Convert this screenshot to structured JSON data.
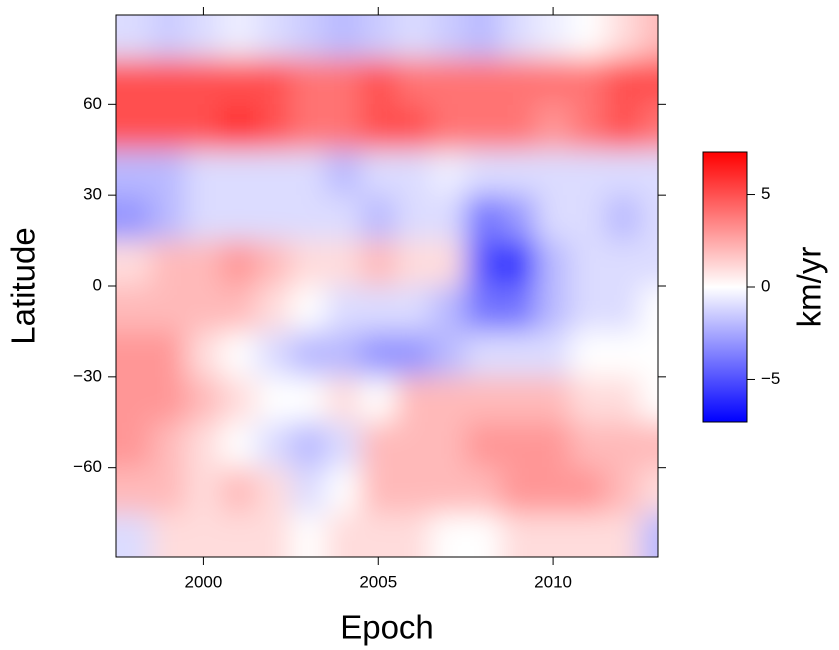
{
  "chart_data": {
    "type": "heatmap",
    "x_label": "Epoch",
    "y_label": "Latitude",
    "colorbar_label": "km/yr",
    "x": [
      1998,
      1999,
      2000,
      2001,
      2002,
      2003,
      2004,
      2005,
      2006,
      2007,
      2008,
      2009,
      2010,
      2011,
      2012,
      2013
    ],
    "y": [
      82.5,
      67.5,
      52.5,
      37.5,
      22.5,
      7.5,
      -7.5,
      -22.5,
      -37.5,
      -52.5,
      -67.5,
      -82.5
    ],
    "values": [
      [
        -1,
        -1.5,
        -1,
        -0.5,
        -1,
        -1.5,
        -2,
        -1.5,
        -1,
        -1.5,
        -2,
        -1,
        -0.5,
        0,
        1,
        2
      ],
      [
        5,
        5,
        5,
        5,
        5,
        4,
        4,
        5,
        4,
        4,
        4,
        4,
        4,
        4,
        5,
        5
      ],
      [
        5,
        5,
        5,
        6,
        5,
        4,
        4,
        5,
        5,
        4,
        4,
        4,
        3,
        4,
        5,
        4
      ],
      [
        -2,
        -2,
        -1,
        -1,
        -1,
        -1,
        -2,
        -1,
        -1,
        -0.5,
        -1,
        -1,
        -1,
        -1,
        -1,
        -1
      ],
      [
        -3,
        -2,
        -1,
        -1,
        -1,
        -1,
        -1,
        -2,
        -1,
        -1,
        -4,
        -3,
        -1,
        -1,
        -2,
        -1
      ],
      [
        1,
        2,
        2,
        3,
        2,
        1,
        1,
        2,
        1,
        1,
        -5,
        -6,
        -2,
        -1,
        -1,
        -1
      ],
      [
        2,
        2,
        2,
        2,
        1,
        0,
        -1,
        -1,
        -1,
        -2,
        -4,
        -4,
        -2,
        -1,
        -1,
        0
      ],
      [
        3,
        3,
        1,
        0,
        -1,
        -2,
        -2,
        -3,
        -3,
        -2,
        -1,
        -1,
        -1,
        0,
        0,
        0
      ],
      [
        3,
        3,
        2,
        1,
        0,
        0,
        1,
        0,
        2,
        2,
        2,
        2,
        2,
        1,
        1,
        0
      ],
      [
        3,
        2,
        1,
        0,
        -1,
        -2,
        -1,
        2,
        2,
        2,
        3,
        3,
        3,
        2,
        2,
        2
      ],
      [
        2,
        2,
        1,
        2,
        1,
        -1,
        0,
        2,
        2,
        2,
        2,
        3,
        3,
        3,
        2,
        1
      ],
      [
        -1,
        1,
        1,
        1,
        1,
        0,
        1,
        1,
        1,
        0,
        0,
        1,
        1,
        1,
        1,
        -2
      ]
    ],
    "xlim": [
      1997.5,
      2013
    ],
    "ylim": [
      -89.5,
      89.5
    ],
    "zlim": [
      -7.3,
      7.3
    ],
    "xticks": [
      2000,
      2005,
      2010
    ],
    "yticks": [
      {
        "value": -60,
        "label": "−60"
      },
      {
        "value": -30,
        "label": "−30"
      },
      0,
      30,
      60
    ],
    "colorbar_ticks": [
      {
        "value": -5,
        "label": "−5"
      },
      0,
      5
    ],
    "colors": [
      "#0000ff",
      "#ffffff",
      "#ff0000"
    ]
  }
}
